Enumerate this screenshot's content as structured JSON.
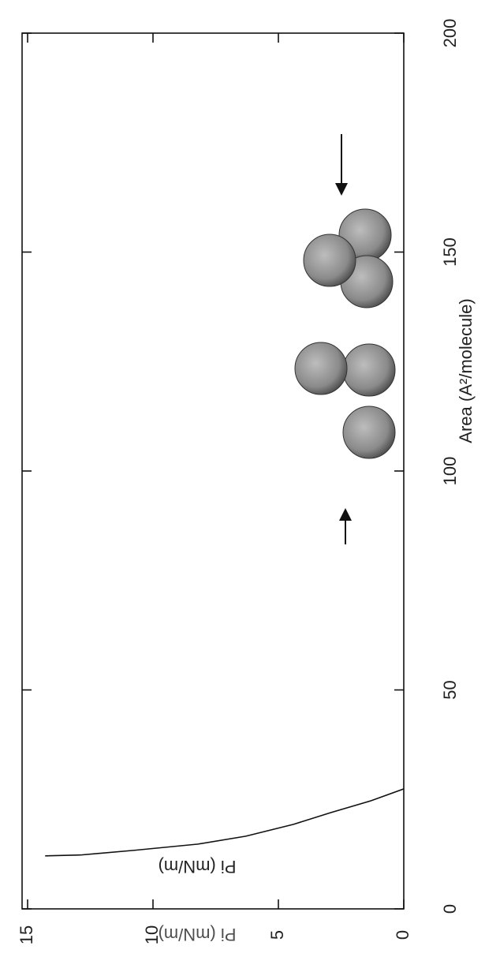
{
  "chart_data": {
    "type": "line",
    "xlabel": "Area (A²/molecule)",
    "ylabel": "Pi (mN/m)",
    "x": [
      12.1,
      12.3,
      13.4,
      14.8,
      16.6,
      19.3,
      22.0,
      24.7,
      27.4
    ],
    "series": [
      {
        "color": "#111111",
        "values": [
          14.3,
          12.9,
          10.7,
          8.2,
          6.3,
          4.4,
          2.9,
          1.3,
          0
        ]
      }
    ],
    "xlim": [
      0,
      200
    ],
    "xticks": [
      0,
      50,
      100,
      150,
      200
    ],
    "ylim": [
      0,
      15
    ],
    "yticks": [
      0,
      5,
      10,
      15
    ]
  }
}
